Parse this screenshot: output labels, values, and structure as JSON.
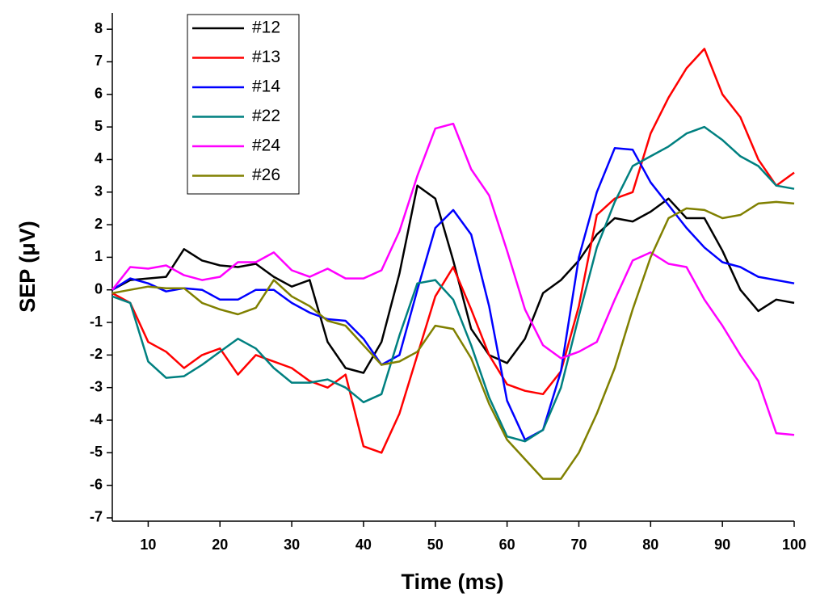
{
  "chart_data": {
    "type": "line",
    "x_label": "Time (ms)",
    "y_label": "SEP (μV)",
    "x": [
      5,
      7.5,
      10,
      12.5,
      15,
      17.5,
      20,
      22.5,
      25,
      27.5,
      30,
      32.5,
      35,
      37.5,
      40,
      42.5,
      45,
      47.5,
      50,
      52.5,
      55,
      57.5,
      60,
      62.5,
      65,
      67.5,
      70,
      72.5,
      75,
      77.5,
      80,
      82.5,
      85,
      87.5,
      90,
      92.5,
      95,
      97.5,
      100
    ],
    "series": [
      {
        "name": "#12",
        "color": "#000000",
        "values": [
          0,
          0.3,
          0.35,
          0.4,
          1.25,
          0.9,
          0.75,
          0.7,
          0.8,
          0.4,
          0.1,
          0.3,
          -1.6,
          -2.4,
          -2.55,
          -1.6,
          0.5,
          3.2,
          2.8,
          0.9,
          -1.2,
          -2.0,
          -2.25,
          -1.5,
          -0.1,
          0.3,
          0.9,
          1.7,
          2.2,
          2.1,
          2.4,
          2.8,
          2.2,
          2.2,
          1.2,
          0.0,
          -0.65,
          -0.3,
          -0.4
        ]
      },
      {
        "name": "#13",
        "color": "#ff0000",
        "values": [
          -0.1,
          -0.4,
          -1.6,
          -1.9,
          -2.4,
          -2.0,
          -1.8,
          -2.6,
          -2.0,
          -2.2,
          -2.4,
          -2.8,
          -3.0,
          -2.6,
          -4.8,
          -5.0,
          -3.8,
          -2.0,
          -0.2,
          0.7,
          -0.6,
          -2.0,
          -2.9,
          -3.1,
          -3.2,
          -2.5,
          -0.5,
          2.3,
          2.8,
          3.0,
          4.8,
          5.9,
          6.8,
          7.4,
          6.0,
          5.3,
          4.0,
          3.2,
          3.6
        ]
      },
      {
        "name": "#14",
        "color": "#0000ff",
        "values": [
          0,
          0.35,
          0.2,
          -0.05,
          0.05,
          0.0,
          -0.3,
          -0.3,
          0.0,
          0.0,
          -0.4,
          -0.7,
          -0.9,
          -0.95,
          -1.5,
          -2.3,
          -2.0,
          0.0,
          1.9,
          2.45,
          1.7,
          -0.5,
          -3.4,
          -4.6,
          -4.3,
          -2.5,
          1.0,
          3.0,
          4.35,
          4.3,
          3.3,
          2.6,
          1.9,
          1.3,
          0.85,
          0.7,
          0.4,
          0.3,
          0.2
        ]
      },
      {
        "name": "#22",
        "color": "#008080",
        "values": [
          -0.2,
          -0.4,
          -2.2,
          -2.7,
          -2.65,
          -2.3,
          -1.9,
          -1.5,
          -1.8,
          -2.4,
          -2.85,
          -2.85,
          -2.75,
          -3.0,
          -3.45,
          -3.2,
          -1.4,
          0.2,
          0.3,
          -0.3,
          -1.7,
          -3.3,
          -4.5,
          -4.65,
          -4.3,
          -3.0,
          -0.8,
          1.3,
          2.7,
          3.8,
          4.1,
          4.4,
          4.8,
          5.0,
          4.6,
          4.1,
          3.8,
          3.2,
          3.1
        ]
      },
      {
        "name": "#24",
        "color": "#ff00ff",
        "values": [
          0,
          0.7,
          0.65,
          0.75,
          0.45,
          0.3,
          0.4,
          0.85,
          0.85,
          1.15,
          0.6,
          0.4,
          0.65,
          0.35,
          0.35,
          0.6,
          1.8,
          3.5,
          4.95,
          5.1,
          3.7,
          2.9,
          1.2,
          -0.6,
          -1.7,
          -2.1,
          -1.9,
          -1.6,
          -0.3,
          0.9,
          1.15,
          0.8,
          0.7,
          -0.3,
          -1.1,
          -2.0,
          -2.8,
          -4.4,
          -4.45
        ]
      },
      {
        "name": "#26",
        "color": "#808000",
        "values": [
          -0.1,
          0.0,
          0.1,
          0.05,
          0.05,
          -0.4,
          -0.6,
          -0.75,
          -0.55,
          0.3,
          -0.2,
          -0.5,
          -0.95,
          -1.1,
          -1.7,
          -2.3,
          -2.2,
          -1.9,
          -1.1,
          -1.2,
          -2.1,
          -3.5,
          -4.6,
          -5.2,
          -5.8,
          -5.8,
          -5.0,
          -3.8,
          -2.4,
          -0.6,
          1.0,
          2.2,
          2.5,
          2.45,
          2.2,
          2.3,
          2.65,
          2.7,
          2.65
        ]
      }
    ],
    "xlim": [
      5,
      100
    ],
    "xticks": [
      10,
      20,
      30,
      40,
      50,
      60,
      70,
      80,
      90,
      100
    ],
    "ylim": [
      -7.1,
      8.5
    ],
    "yticks": [
      -7,
      -6,
      -5,
      -4,
      -3,
      -2,
      -1,
      0,
      1,
      2,
      3,
      4,
      5,
      6,
      7,
      8
    ],
    "legend": "upper left"
  }
}
